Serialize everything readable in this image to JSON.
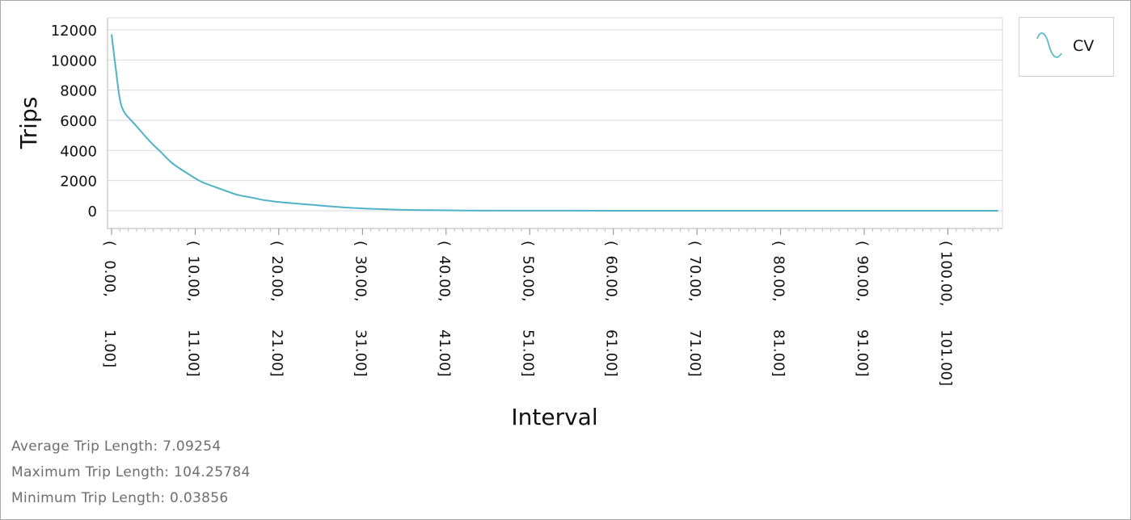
{
  "stats": {
    "average": "Average Trip Length: 7.09254",
    "maximum": "Maximum Trip Length: 104.25784",
    "minimum": "Minimum Trip Length: 0.03856"
  },
  "legend": {
    "label": "CV",
    "icon": "curve-icon"
  },
  "colors": {
    "series": "#4eb3c7",
    "grid": "#d9d9d9",
    "axis": "#b5b5b5",
    "text": "#111111"
  },
  "chart_data": {
    "type": "line",
    "xlabel": "Interval",
    "ylabel": "Trips",
    "ylim": [
      0,
      12000
    ],
    "yticks": [
      "12000",
      "10000",
      "8000",
      "6000",
      "4000",
      "2000",
      "0"
    ],
    "xlim": [
      0,
      106
    ],
    "grid": true,
    "legend_position": "top-right",
    "x_tick_labels": [
      {
        "x": 0,
        "line1": "(   0.00,",
        "line2": "1.00]"
      },
      {
        "x": 10,
        "line1": "(  10.00,",
        "line2": "11.00]"
      },
      {
        "x": 20,
        "line1": "(  20.00,",
        "line2": "21.00]"
      },
      {
        "x": 30,
        "line1": "(  30.00,",
        "line2": "31.00]"
      },
      {
        "x": 40,
        "line1": "(  40.00,",
        "line2": "41.00]"
      },
      {
        "x": 50,
        "line1": "(  50.00,",
        "line2": "51.00]"
      },
      {
        "x": 60,
        "line1": "(  60.00,",
        "line2": "61.00]"
      },
      {
        "x": 70,
        "line1": "(  70.00,",
        "line2": "71.00]"
      },
      {
        "x": 80,
        "line1": "(  80.00,",
        "line2": "81.00]"
      },
      {
        "x": 90,
        "line1": "(  90.00,",
        "line2": "91.00]"
      },
      {
        "x": 100,
        "line1": "( 100.00,",
        "line2": "101.00]"
      }
    ],
    "series": [
      {
        "name": "CV",
        "x": [
          0,
          0.5,
          1,
          1.5,
          2,
          3,
          4,
          5,
          6,
          7,
          8,
          9,
          10,
          11,
          12,
          13,
          14,
          15,
          16,
          17,
          18,
          19,
          20,
          22,
          24,
          26,
          28,
          30,
          33,
          36,
          40,
          45,
          50,
          60,
          70,
          80,
          90,
          100,
          106
        ],
        "values": [
          11700,
          9400,
          7200,
          6500,
          6200,
          5600,
          4950,
          4350,
          3850,
          3250,
          2850,
          2500,
          2150,
          1850,
          1650,
          1450,
          1250,
          1050,
          950,
          850,
          720,
          640,
          580,
          480,
          390,
          300,
          210,
          150,
          90,
          50,
          25,
          10,
          5,
          2,
          1,
          0,
          0,
          0,
          0
        ]
      }
    ]
  }
}
